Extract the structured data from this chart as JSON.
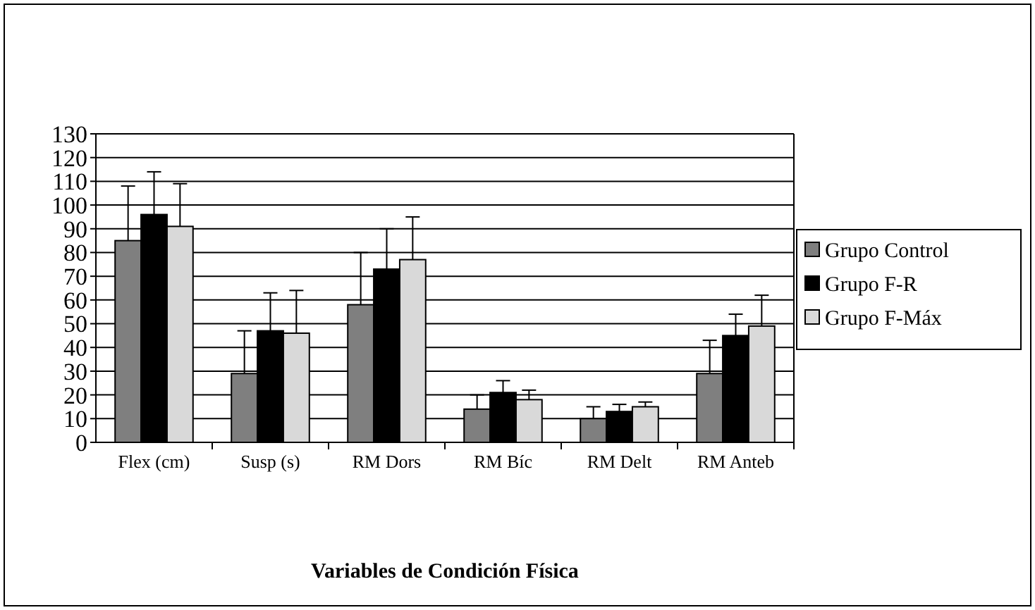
{
  "chart_data": {
    "type": "bar",
    "xlabel": "Variables de Condición Física",
    "categories": [
      "Flex (cm)",
      "Susp (s)",
      "RM Dors",
      "RM Bíc",
      "RM Delt",
      "RM Anteb"
    ],
    "series": [
      {
        "name": "Grupo Control",
        "color": "#7f7f7f",
        "values": [
          85,
          29,
          58,
          14,
          10,
          29
        ],
        "errors": [
          [
            85,
            108
          ],
          [
            29,
            47
          ],
          [
            58,
            80
          ],
          [
            14,
            20
          ],
          [
            10,
            15
          ],
          [
            29,
            43
          ]
        ]
      },
      {
        "name": "Grupo F-R",
        "color": "#000000",
        "values": [
          96,
          47,
          73,
          21,
          13,
          45
        ],
        "errors": [
          [
            96,
            114
          ],
          [
            47,
            63
          ],
          [
            73,
            90
          ],
          [
            21,
            26
          ],
          [
            13,
            16
          ],
          [
            45,
            54
          ]
        ]
      },
      {
        "name": "Grupo F-Máx",
        "color": "#d9d9d9",
        "values": [
          91,
          46,
          77,
          18,
          15,
          49
        ],
        "errors": [
          [
            91,
            109
          ],
          [
            46,
            64
          ],
          [
            77,
            95
          ],
          [
            18,
            22
          ],
          [
            15,
            17
          ],
          [
            49,
            62
          ]
        ]
      }
    ],
    "ylim": [
      0,
      130
    ],
    "yticks": [
      0,
      10,
      20,
      30,
      40,
      50,
      60,
      70,
      80,
      90,
      100,
      110,
      120,
      130
    ],
    "grid": "y",
    "legend": "right"
  }
}
